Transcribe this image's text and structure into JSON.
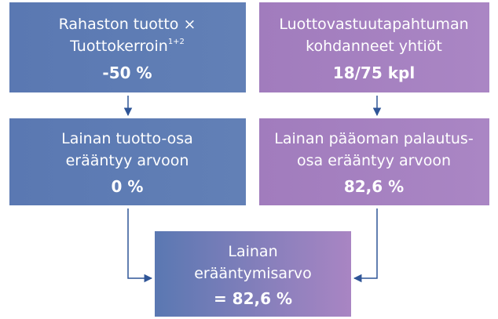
{
  "nodes": [
    {
      "lines": [
        "Rahaston tuotto ×",
        "Tuottokerroin"
      ],
      "superscript": "1+2",
      "value": "-50 %"
    },
    {
      "lines": [
        "Luottovastuutapahtuman",
        "kohdanneet yhtiöt"
      ],
      "value": "18/75 kpl"
    },
    {
      "lines": [
        "Lainan tuotto-osa",
        "erääntyy arvoon"
      ],
      "value": "0 %"
    },
    {
      "lines": [
        "Lainan pääoman palautus-",
        "osa erääntyy arvoon"
      ],
      "value": "82,6 %"
    },
    {
      "lines": [
        "Lainan",
        "erääntymisarvo"
      ],
      "value": "= 82,6 %"
    }
  ]
}
